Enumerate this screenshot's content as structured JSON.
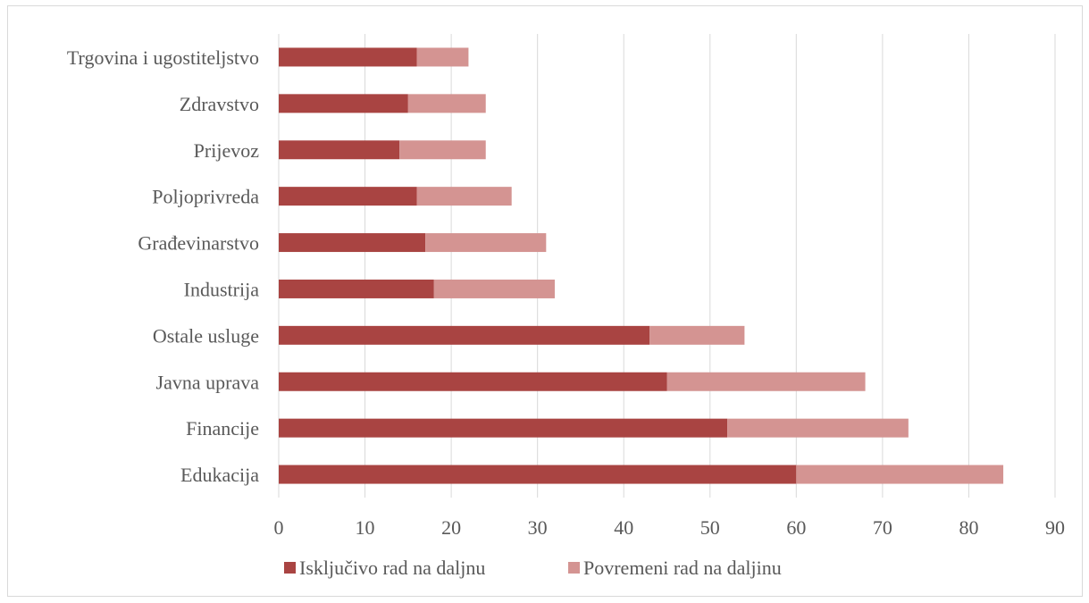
{
  "chart_data": {
    "type": "bar",
    "orientation": "horizontal",
    "stacked": true,
    "categories": [
      "Trgovina i ugostiteljstvo",
      "Zdravstvo",
      "Prijevoz",
      "Poljoprivreda",
      "Građevinarstvo",
      "Industrija",
      "Ostale usluge",
      "Javna uprava",
      "Financije",
      "Edukacija"
    ],
    "series": [
      {
        "name": "Isključivo rad na daljnu",
        "color": "#a94442",
        "values": [
          16,
          15,
          14,
          16,
          17,
          18,
          43,
          45,
          52,
          60
        ]
      },
      {
        "name": "Povremeni rad na daljinu",
        "color": "#d49492",
        "values": [
          6,
          9,
          10,
          11,
          14,
          14,
          11,
          23,
          21,
          24
        ]
      }
    ],
    "xlim": [
      0,
      90
    ],
    "xticks": [
      "0",
      "10",
      "20",
      "30",
      "40",
      "50",
      "60",
      "70",
      "80",
      "90"
    ],
    "grid": "vertical",
    "legend": "bottom"
  }
}
